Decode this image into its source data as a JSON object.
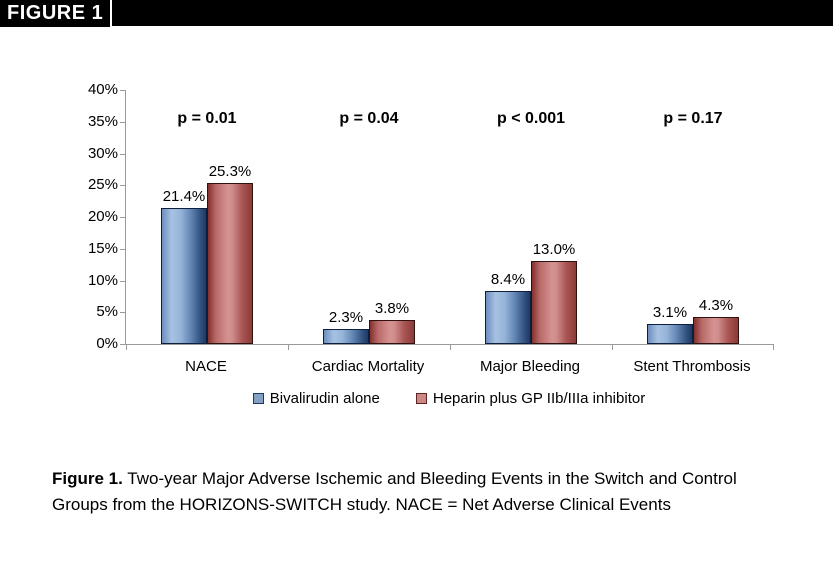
{
  "header": {
    "figure_label": "FIGURE 1"
  },
  "chart_data": {
    "type": "bar",
    "title": "",
    "categories": [
      "NACE",
      "Cardiac Mortality",
      "Major Bleeding",
      "Stent Thrombosis"
    ],
    "series": [
      {
        "name": "Bivalirudin alone",
        "values": [
          21.4,
          2.3,
          8.4,
          3.1
        ],
        "color": "#95b3d7",
        "border": "#1f3864"
      },
      {
        "name": "Heparin plus GP IIb/IIIa inhibitor",
        "values": [
          25.3,
          3.8,
          13.0,
          4.3
        ],
        "color": "#d99694",
        "border": "#632523"
      }
    ],
    "p_values": [
      "p = 0.01",
      "p = 0.04",
      "p < 0.001",
      "p = 0.17"
    ],
    "ylim": [
      0,
      40
    ],
    "ytick_step": 5,
    "yticks": [
      "0%",
      "5%",
      "10%",
      "15%",
      "20%",
      "25%",
      "30%",
      "35%",
      "40%"
    ],
    "grid": false,
    "legend_position": "bottom",
    "axis_color": "#9a9a9a"
  },
  "caption": {
    "label": "Figure 1.",
    "text": " Two-year Major Adverse Ischemic and Bleeding Events in the Switch and Control Groups from the HORIZONS-SWITCH study. NACE = Net Adverse Clinical Events"
  }
}
